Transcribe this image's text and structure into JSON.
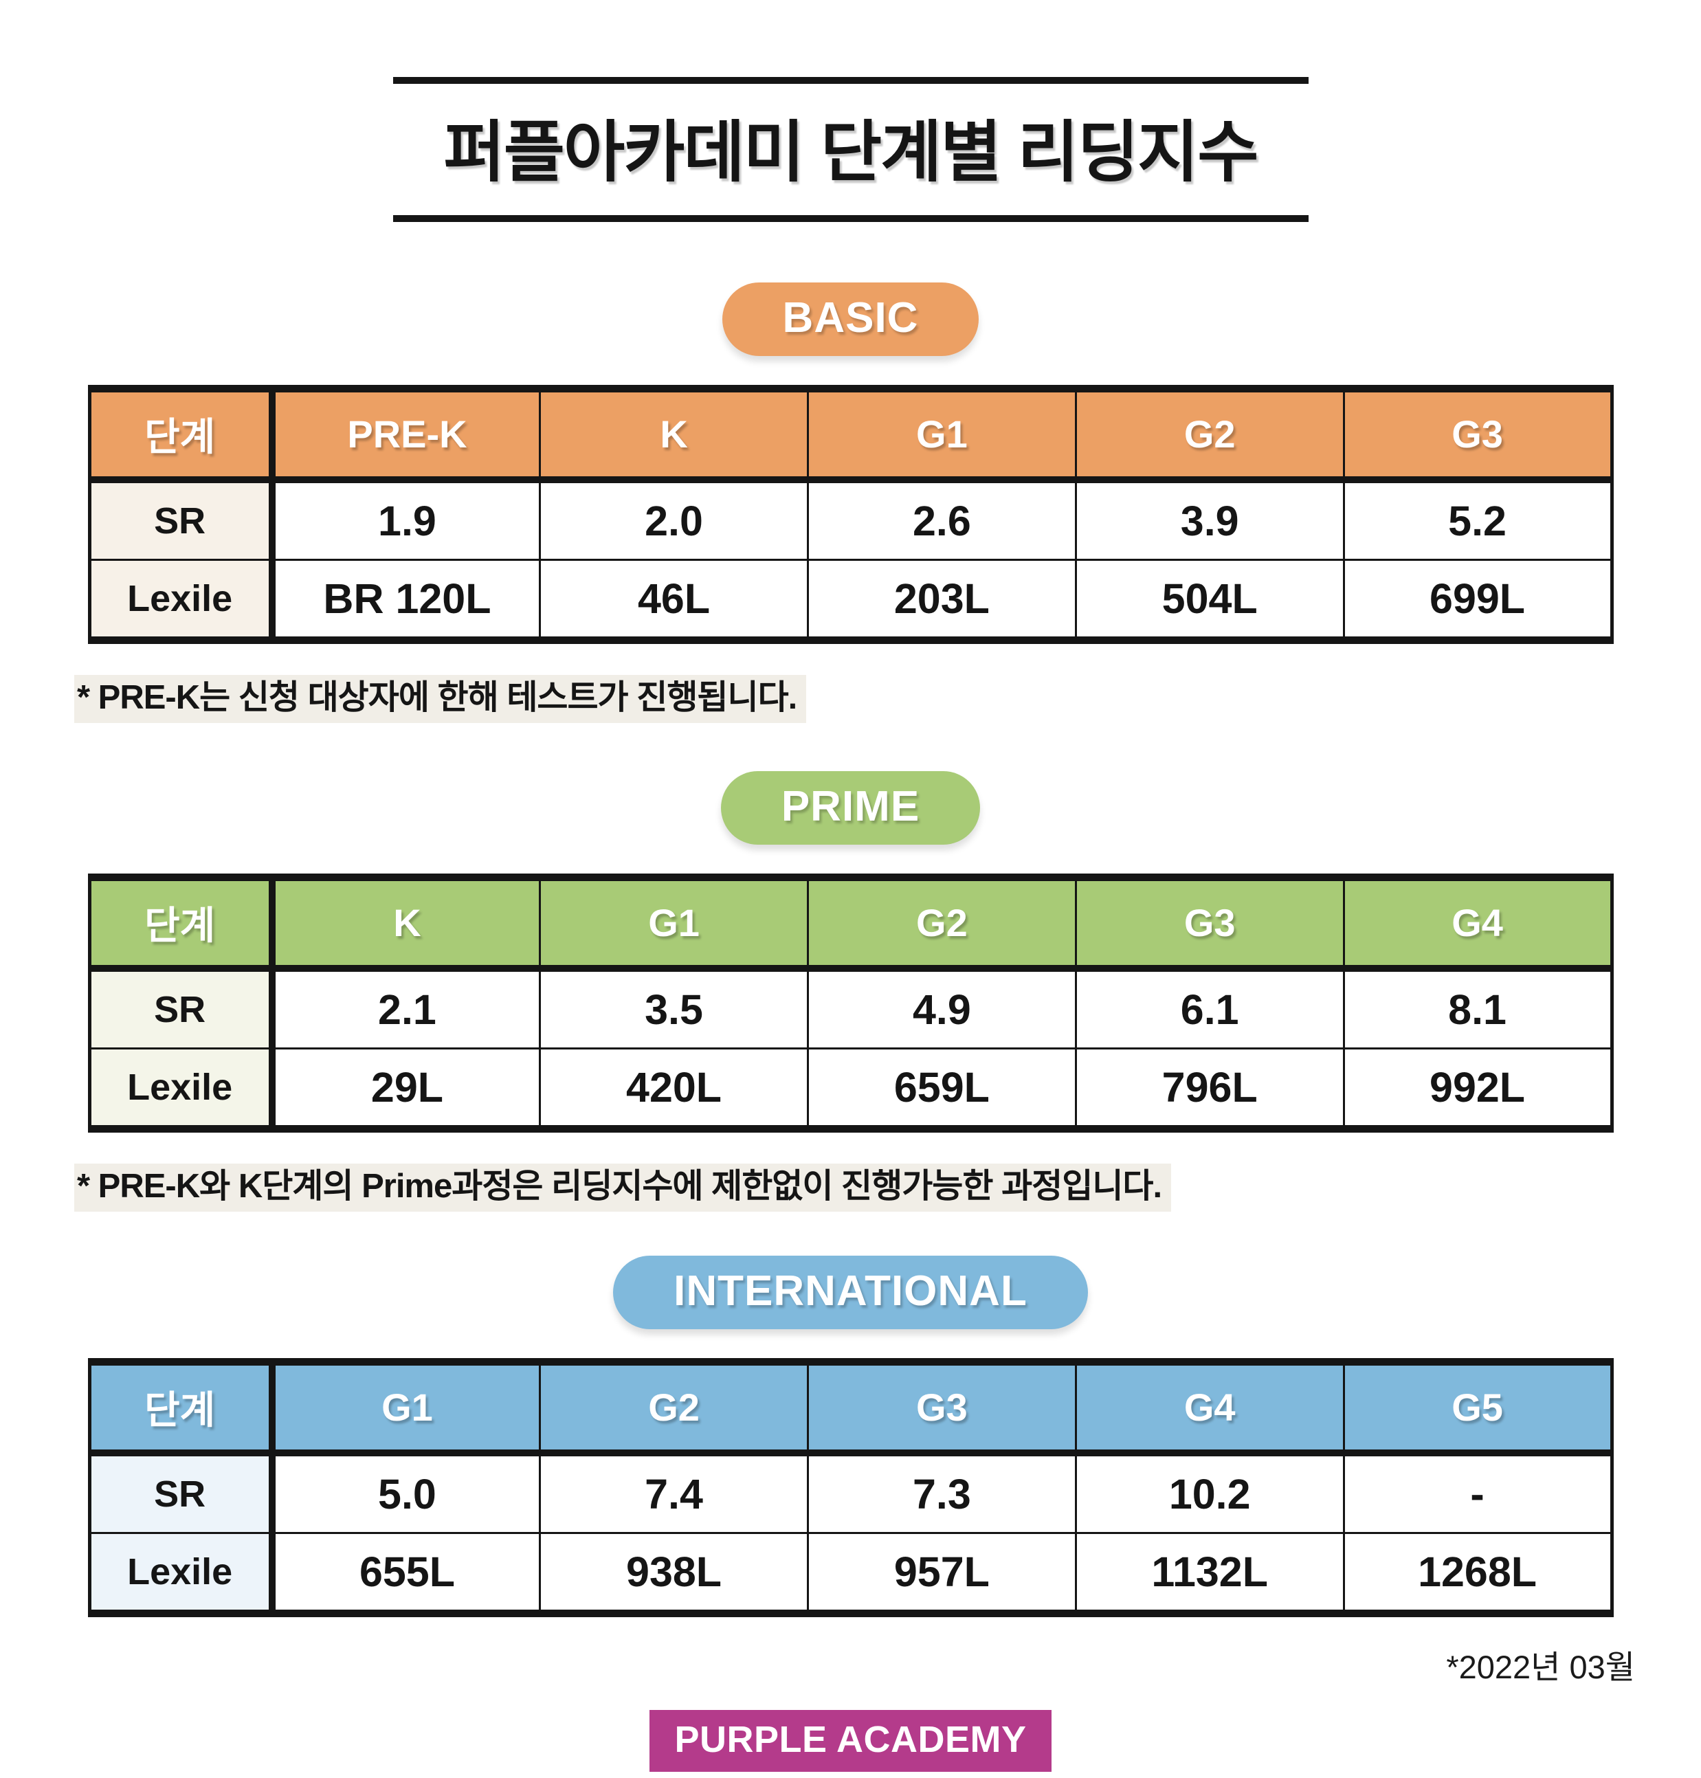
{
  "title": "퍼플아카데미 단계별 리딩지수",
  "sections": [
    {
      "badge": "BASIC",
      "header_color": "#ECA064",
      "label_color": "#F7F1E8",
      "row_header": "단계",
      "columns": [
        "PRE-K",
        "K",
        "G1",
        "G2",
        "G3"
      ],
      "rows": [
        {
          "label": "SR",
          "values": [
            "1.9",
            "2.0",
            "2.6",
            "3.9",
            "5.2"
          ]
        },
        {
          "label": "Lexile",
          "values": [
            "BR 120L",
            "46L",
            "203L",
            "504L",
            "699L"
          ]
        }
      ],
      "footnote": "* PRE-K는 신청 대상자에 한해 테스트가 진행됩니다."
    },
    {
      "badge": "PRIME",
      "header_color": "#A8CB76",
      "label_color": "#F4F5E9",
      "row_header": "단계",
      "columns": [
        "K",
        "G1",
        "G2",
        "G3",
        "G4"
      ],
      "rows": [
        {
          "label": "SR",
          "values": [
            "2.1",
            "3.5",
            "4.9",
            "6.1",
            "8.1"
          ]
        },
        {
          "label": "Lexile",
          "values": [
            "29L",
            "420L",
            "659L",
            "796L",
            "992L"
          ]
        }
      ],
      "footnote": "* PRE-K와 K단계의 Prime과정은 리딩지수에 제한없이 진행가능한 과정입니다."
    },
    {
      "badge": "INTERNATIONAL",
      "header_color": "#80B9DC",
      "label_color": "#EDF4FA",
      "row_header": "단계",
      "columns": [
        "G1",
        "G2",
        "G3",
        "G4",
        "G5"
      ],
      "rows": [
        {
          "label": "SR",
          "values": [
            "5.0",
            "7.4",
            "7.3",
            "10.2",
            "-"
          ]
        },
        {
          "label": "Lexile",
          "values": [
            "655L",
            "938L",
            "957L",
            "1132L",
            "1268L"
          ]
        }
      ],
      "footnote": null
    }
  ],
  "footer": {
    "date_note": "*2022년 03월",
    "logo_text": "PURPLE ACADEMY",
    "logo_color": "#B43B8B"
  }
}
